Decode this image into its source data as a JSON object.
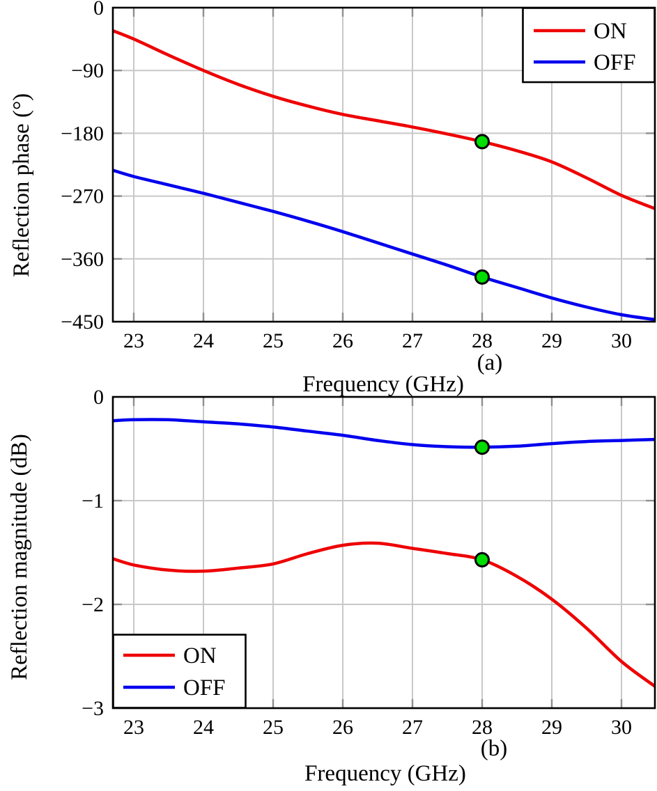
{
  "figure": {
    "background": "#ffffff",
    "colors": {
      "grid": "#c8c8c8",
      "tick": "#8f8f8f",
      "axis": "#000000",
      "marker_fill": "#00dd00",
      "marker_stroke": "#000000"
    }
  },
  "chart_data": [
    {
      "id": "a",
      "type": "line",
      "caption": "(a)",
      "xlabel": "Frequency (GHz)",
      "ylabel": "Reflection phase (°)",
      "xlim": [
        22.7,
        30.48
      ],
      "ylim": [
        -450,
        0
      ],
      "x_ticks": [
        23,
        24,
        25,
        26,
        27,
        28,
        29,
        30
      ],
      "y_ticks": [
        0,
        -90,
        -180,
        -270,
        -360,
        -450
      ],
      "grid": true,
      "legend_position": "top-right",
      "x": [
        22.7,
        23,
        23.5,
        24,
        24.5,
        25,
        25.5,
        26,
        26.5,
        27,
        27.5,
        28,
        28.5,
        29,
        29.5,
        30,
        30.48
      ],
      "series": [
        {
          "name": "ON",
          "color": "#ee0000",
          "values": [
            -33,
            -45,
            -68,
            -90,
            -110,
            -127,
            -141,
            -153,
            -162,
            -171,
            -181,
            -192,
            -205,
            -221,
            -244,
            -269,
            -288
          ]
        },
        {
          "name": "OFF",
          "color": "#0000ee",
          "values": [
            -233,
            -242,
            -254,
            -266,
            -279,
            -292,
            -306,
            -321,
            -337,
            -353,
            -369,
            -386,
            -401,
            -416,
            -429,
            -440,
            -447
          ]
        }
      ],
      "highlight_markers": [
        {
          "series": "ON",
          "x": 28,
          "y": -192
        },
        {
          "series": "OFF",
          "x": 28,
          "y": -386
        }
      ]
    },
    {
      "id": "b",
      "type": "line",
      "caption": "(b)",
      "xlabel": "Frequency (GHz)",
      "ylabel": "Reflection magnitude (dB)",
      "xlim": [
        22.7,
        30.48
      ],
      "ylim": [
        -3,
        0
      ],
      "x_ticks": [
        23,
        24,
        25,
        26,
        27,
        28,
        29,
        30
      ],
      "y_ticks": [
        0,
        -1,
        -2,
        -3
      ],
      "grid": true,
      "legend_position": "bottom-left",
      "x": [
        22.7,
        23,
        23.5,
        24,
        24.5,
        25,
        25.5,
        26,
        26.5,
        27,
        27.5,
        28,
        28.5,
        29,
        29.5,
        30,
        30.48
      ],
      "series": [
        {
          "name": "ON",
          "color": "#ee0000",
          "values": [
            -1.56,
            -1.62,
            -1.67,
            -1.68,
            -1.65,
            -1.61,
            -1.51,
            -1.43,
            -1.41,
            -1.46,
            -1.51,
            -1.57,
            -1.73,
            -1.95,
            -2.23,
            -2.55,
            -2.79
          ]
        },
        {
          "name": "OFF",
          "color": "#0000ee",
          "values": [
            -0.23,
            -0.22,
            -0.22,
            -0.24,
            -0.26,
            -0.29,
            -0.33,
            -0.37,
            -0.42,
            -0.46,
            -0.48,
            -0.485,
            -0.475,
            -0.45,
            -0.43,
            -0.42,
            -0.41
          ]
        }
      ],
      "highlight_markers": [
        {
          "series": "ON",
          "x": 28,
          "y": -1.57
        },
        {
          "series": "OFF",
          "x": 28,
          "y": -0.485
        }
      ]
    }
  ]
}
